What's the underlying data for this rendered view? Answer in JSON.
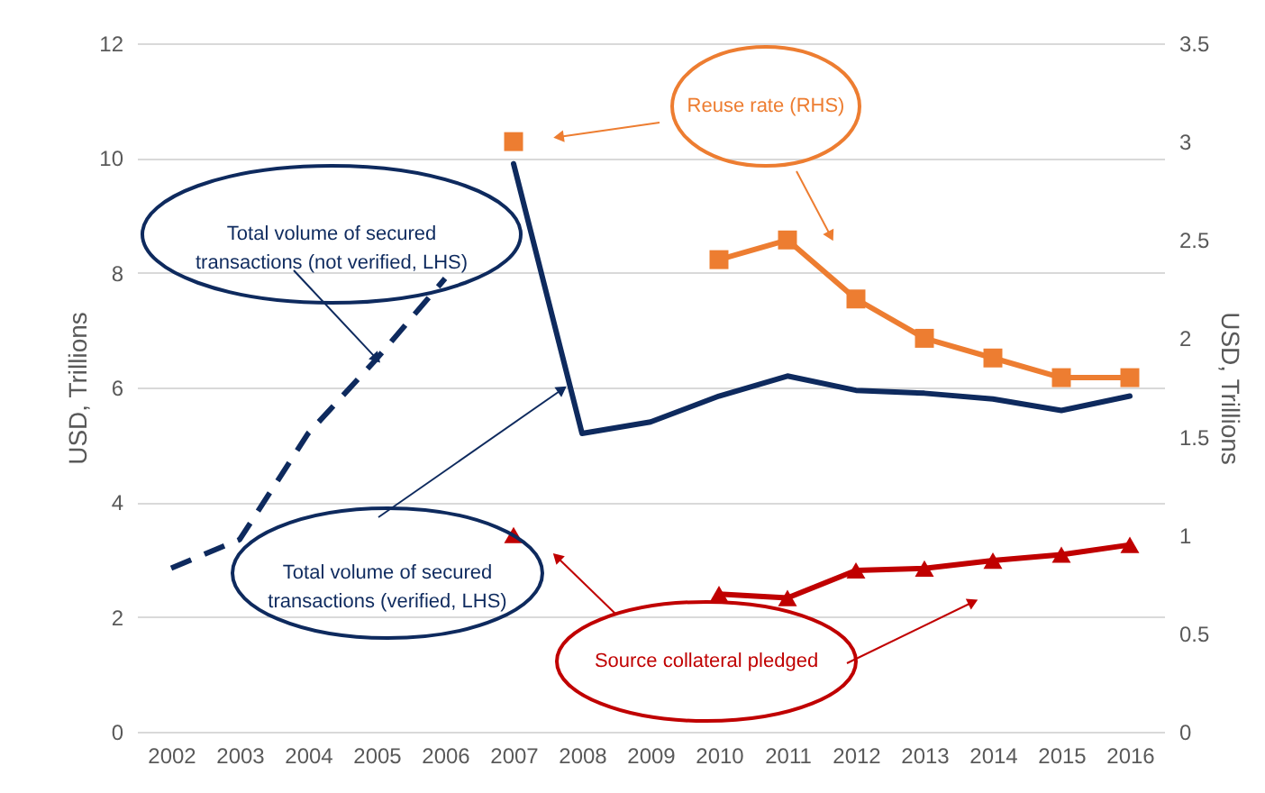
{
  "chart_data": {
    "type": "line",
    "categories": [
      "2002",
      "2003",
      "2004",
      "2005",
      "2006",
      "2007",
      "2008",
      "2009",
      "2010",
      "2011",
      "2012",
      "2013",
      "2014",
      "2015",
      "2016"
    ],
    "ylabel": "USD, Trillions",
    "y2label": "USD, Trillions",
    "ylim": [
      0,
      12
    ],
    "yticks": [
      0,
      2,
      4,
      6,
      8,
      10,
      12
    ],
    "y2lim": [
      0,
      3.5
    ],
    "y2ticks": [
      0,
      0.5,
      1,
      1.5,
      2,
      2.5,
      3,
      3.5
    ],
    "grid": "y",
    "annotations": [
      {
        "text": "Total volume of secured transactions (not verified, LHS)",
        "x": "2005",
        "y": 6.5
      },
      "Total volume of secured transactions (verified, LHS)",
      "Reuse rate (RHS)",
      "Source collateral pledged"
    ],
    "series": [
      {
        "color": "#0e2a5e",
        "line_style": "dashed",
        "marker": "none",
        "values": [
          2.85,
          3.35,
          5.2,
          6.5,
          7.9,
          null,
          null,
          null,
          null,
          null,
          null,
          null,
          null,
          null,
          null
        ]
      },
      {
        "color": "#0e2a5e",
        "line_style": "solid",
        "marker": "none",
        "values": [
          null,
          null,
          null,
          null,
          null,
          9.9,
          5.2,
          5.4,
          5.85,
          6.2,
          5.95,
          5.9,
          5.8,
          5.6,
          5.85
        ]
      },
      {
        "color": "#ed7d31",
        "axis": "y2",
        "line_style": "solid",
        "marker": "square",
        "values": [
          null,
          null,
          null,
          null,
          null,
          3.0,
          null,
          null,
          2.4,
          2.5,
          2.2,
          2.0,
          1.9,
          1.8,
          1.8
        ]
      },
      {
        "color": "#c00000",
        "axis": "y2",
        "line_style": "solid",
        "marker": "triangle",
        "values": [
          null,
          null,
          null,
          null,
          null,
          1.0,
          null,
          null,
          0.7,
          0.68,
          0.82,
          0.83,
          0.87,
          0.9,
          0.95
        ]
      }
    ]
  }
}
